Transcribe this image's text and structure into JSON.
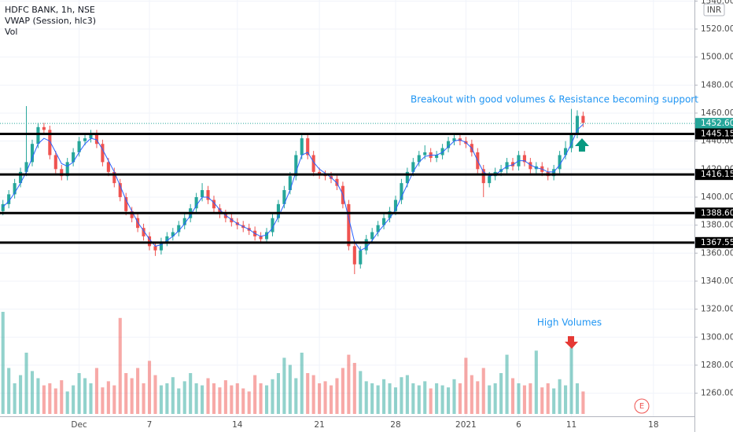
{
  "chart_data": {
    "type": "candlestick",
    "title": "HDFC BANK, 1h, NSE",
    "indicators": [
      "VWAP (Session, hlc3)",
      "Vol"
    ],
    "currency": "INR",
    "open": [
      1390,
      1395,
      1402,
      1410,
      1418,
      1425,
      1438,
      1450,
      1448,
      1430,
      1420,
      1415,
      1425,
      1432,
      1440,
      1442,
      1445,
      1438,
      1425,
      1418,
      1410,
      1400,
      1390,
      1385,
      1378,
      1372,
      1365,
      1362,
      1368,
      1372,
      1375,
      1380,
      1385,
      1392,
      1400,
      1405,
      1398,
      1392,
      1388,
      1385,
      1382,
      1380,
      1378,
      1376,
      1372,
      1370,
      1375,
      1385,
      1395,
      1405,
      1415,
      1430,
      1442,
      1430,
      1418,
      1416,
      1415,
      1413,
      1408,
      1395,
      1365,
      1352,
      1362,
      1370,
      1375,
      1380,
      1385,
      1390,
      1398,
      1410,
      1418,
      1425,
      1430,
      1432,
      1428,
      1430,
      1435,
      1440,
      1442,
      1440,
      1438,
      1432,
      1420,
      1410,
      1415,
      1418,
      1420,
      1425,
      1422,
      1430,
      1425,
      1420,
      1422,
      1418,
      1415,
      1420,
      1430,
      1435,
      1445,
      1458
    ],
    "high": [
      1398,
      1405,
      1413,
      1421,
      1465,
      1441,
      1453,
      1453,
      1451,
      1433,
      1423,
      1428,
      1435,
      1443,
      1445,
      1448,
      1448,
      1441,
      1428,
      1421,
      1413,
      1403,
      1393,
      1388,
      1381,
      1375,
      1368,
      1371,
      1375,
      1378,
      1383,
      1388,
      1395,
      1403,
      1410,
      1408,
      1401,
      1395,
      1391,
      1388,
      1385,
      1383,
      1381,
      1379,
      1375,
      1378,
      1388,
      1398,
      1408,
      1418,
      1433,
      1446,
      1445,
      1433,
      1421,
      1419,
      1418,
      1416,
      1411,
      1398,
      1368,
      1365,
      1373,
      1378,
      1383,
      1388,
      1393,
      1401,
      1413,
      1421,
      1428,
      1433,
      1437,
      1435,
      1433,
      1438,
      1443,
      1445,
      1445,
      1443,
      1441,
      1435,
      1423,
      1418,
      1421,
      1423,
      1428,
      1428,
      1433,
      1433,
      1428,
      1425,
      1425,
      1421,
      1423,
      1433,
      1440,
      1463,
      1462,
      1461
    ],
    "low": [
      1387,
      1392,
      1399,
      1407,
      1415,
      1422,
      1435,
      1445,
      1427,
      1417,
      1412,
      1412,
      1422,
      1429,
      1437,
      1439,
      1435,
      1422,
      1415,
      1407,
      1397,
      1387,
      1382,
      1375,
      1369,
      1362,
      1358,
      1359,
      1365,
      1369,
      1372,
      1377,
      1382,
      1389,
      1397,
      1395,
      1389,
      1385,
      1382,
      1379,
      1377,
      1375,
      1373,
      1369,
      1367,
      1367,
      1372,
      1382,
      1392,
      1402,
      1412,
      1427,
      1427,
      1415,
      1413,
      1412,
      1410,
      1405,
      1392,
      1362,
      1345,
      1349,
      1359,
      1367,
      1372,
      1377,
      1382,
      1387,
      1395,
      1407,
      1415,
      1422,
      1427,
      1425,
      1425,
      1427,
      1432,
      1437,
      1437,
      1435,
      1429,
      1417,
      1400,
      1407,
      1412,
      1415,
      1417,
      1419,
      1419,
      1422,
      1417,
      1417,
      1415,
      1412,
      1412,
      1417,
      1427,
      1432,
      1442,
      1450
    ],
    "close": [
      1395,
      1402,
      1410,
      1418,
      1425,
      1438,
      1450,
      1448,
      1430,
      1420,
      1415,
      1425,
      1432,
      1440,
      1442,
      1445,
      1438,
      1425,
      1418,
      1410,
      1400,
      1390,
      1385,
      1378,
      1372,
      1365,
      1362,
      1368,
      1372,
      1375,
      1380,
      1385,
      1392,
      1400,
      1405,
      1398,
      1392,
      1388,
      1385,
      1382,
      1380,
      1378,
      1376,
      1372,
      1370,
      1375,
      1385,
      1395,
      1405,
      1415,
      1430,
      1442,
      1430,
      1418,
      1416,
      1415,
      1413,
      1408,
      1395,
      1365,
      1352,
      1362,
      1370,
      1375,
      1380,
      1385,
      1390,
      1398,
      1410,
      1418,
      1425,
      1430,
      1432,
      1428,
      1430,
      1435,
      1440,
      1442,
      1440,
      1438,
      1432,
      1420,
      1410,
      1415,
      1418,
      1420,
      1425,
      1422,
      1430,
      1425,
      1420,
      1422,
      1418,
      1415,
      1420,
      1430,
      1435,
      1445,
      1458,
      1453
    ],
    "volume": [
      100,
      45,
      30,
      38,
      60,
      42,
      35,
      28,
      30,
      25,
      33,
      22,
      28,
      40,
      35,
      30,
      45,
      26,
      32,
      28,
      94,
      40,
      35,
      45,
      30,
      52,
      38,
      28,
      30,
      36,
      25,
      32,
      40,
      30,
      28,
      35,
      30,
      26,
      33,
      28,
      30,
      25,
      22,
      38,
      30,
      28,
      34,
      40,
      55,
      48,
      35,
      60,
      40,
      38,
      30,
      32,
      28,
      35,
      45,
      58,
      50,
      42,
      32,
      30,
      28,
      34,
      30,
      26,
      36,
      38,
      30,
      28,
      32,
      25,
      30,
      28,
      26,
      34,
      30,
      55,
      38,
      32,
      45,
      28,
      30,
      40,
      58,
      35,
      30,
      28,
      30,
      62,
      26,
      30,
      25,
      34,
      28,
      65,
      30,
      22
    ],
    "vwap": [
      1393,
      1397,
      1403,
      1410,
      1418,
      1428,
      1438,
      1442,
      1440,
      1432,
      1424,
      1422,
      1425,
      1432,
      1438,
      1442,
      1441,
      1434,
      1426,
      1418,
      1408,
      1398,
      1390,
      1382,
      1376,
      1370,
      1365,
      1366,
      1369,
      1372,
      1376,
      1381,
      1387,
      1394,
      1400,
      1400,
      1396,
      1391,
      1387,
      1384,
      1381,
      1379,
      1377,
      1374,
      1372,
      1373,
      1378,
      1386,
      1395,
      1405,
      1418,
      1430,
      1432,
      1425,
      1420,
      1417,
      1414,
      1410,
      1402,
      1385,
      1368,
      1362,
      1364,
      1369,
      1375,
      1380,
      1385,
      1391,
      1400,
      1409,
      1418,
      1425,
      1429,
      1430,
      1430,
      1432,
      1436,
      1440,
      1441,
      1439,
      1435,
      1426,
      1418,
      1415,
      1416,
      1419,
      1422,
      1423,
      1426,
      1426,
      1423,
      1421,
      1420,
      1418,
      1418,
      1423,
      1430,
      1438,
      1448,
      1452
    ],
    "up_color": "#26a69a",
    "down_color": "#ef5350",
    "vwap_color": "#2962ff",
    "ylim": [
      1243.5,
      1540.75
    ],
    "yticks": [
      {
        "value": 1260,
        "label": "1260.00"
      },
      {
        "value": 1280,
        "label": "1280.00"
      },
      {
        "value": 1300,
        "label": "1300.00"
      },
      {
        "value": 1320,
        "label": "1320.00"
      },
      {
        "value": 1340,
        "label": "1340.00"
      },
      {
        "value": 1360,
        "label": "1360.00"
      },
      {
        "value": 1380,
        "label": "1380.00"
      },
      {
        "value": 1400,
        "label": "1400.00"
      },
      {
        "value": 1420,
        "label": "1420.00"
      },
      {
        "value": 1440,
        "label": "1440.00"
      },
      {
        "value": 1460,
        "label": "1460.00"
      },
      {
        "value": 1480,
        "label": "1480.00"
      },
      {
        "value": 1500,
        "label": "1500.00"
      },
      {
        "value": 1520,
        "label": "1520.00"
      },
      {
        "value": 1540,
        "label": "1540.00"
      }
    ],
    "xlim": [
      -0.5,
      118
    ],
    "xticks": [
      {
        "value": 13,
        "label": "Dec"
      },
      {
        "value": 25,
        "label": "7"
      },
      {
        "value": 40,
        "label": "14"
      },
      {
        "value": 54,
        "label": "21"
      },
      {
        "value": 67,
        "label": "28"
      },
      {
        "value": 79,
        "label": "2021"
      },
      {
        "value": 88,
        "label": "6"
      },
      {
        "value": 97,
        "label": "11"
      },
      {
        "value": 111,
        "label": "18"
      }
    ],
    "grid": true,
    "levels": [
      1445.15,
      1416.15,
      {
        "value": 1388.6,
        "label": "1388.60"
      },
      1367.55
    ],
    "last_price": {
      "value": 1452.6,
      "label": "1452.60"
    },
    "annotations": [
      "Breakout with good volumes & Resistance becoming support",
      "High Volumes"
    ],
    "event_marker": "E"
  }
}
